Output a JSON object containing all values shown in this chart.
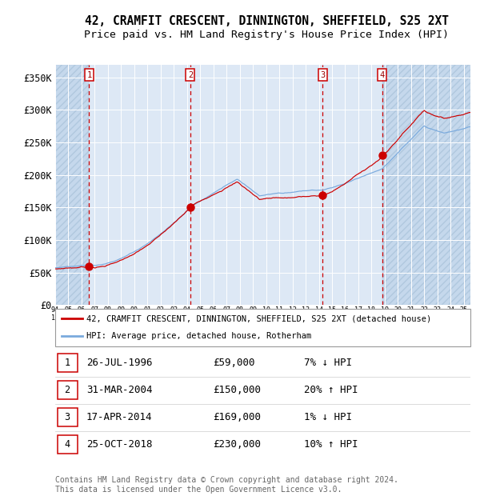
{
  "title1": "42, CRAMFIT CRESCENT, DINNINGTON, SHEFFIELD, S25 2XT",
  "title2": "Price paid vs. HM Land Registry's House Price Index (HPI)",
  "legend_line1": "42, CRAMFIT CRESCENT, DINNINGTON, SHEFFIELD, S25 2XT (detached house)",
  "legend_line2": "HPI: Average price, detached house, Rotherham",
  "footer": "Contains HM Land Registry data © Crown copyright and database right 2024.\nThis data is licensed under the Open Government Licence v3.0.",
  "sales": [
    {
      "num": 1,
      "date": "26-JUL-1996",
      "price": 59000,
      "pct": "7%",
      "dir": "↓",
      "year_x": 1996.57
    },
    {
      "num": 2,
      "date": "31-MAR-2004",
      "price": 150000,
      "pct": "20%",
      "dir": "↑",
      "year_x": 2004.25
    },
    {
      "num": 3,
      "date": "17-APR-2014",
      "price": 169000,
      "pct": "1%",
      "dir": "↓",
      "year_x": 2014.29
    },
    {
      "num": 4,
      "date": "25-OCT-2018",
      "price": 230000,
      "pct": "10%",
      "dir": "↑",
      "year_x": 2018.81
    }
  ],
  "ylabel_ticks": [
    0,
    50000,
    100000,
    150000,
    200000,
    250000,
    300000,
    350000
  ],
  "ylabel_labels": [
    "£0",
    "£50K",
    "£100K",
    "£150K",
    "£200K",
    "£250K",
    "£300K",
    "£350K"
  ],
  "xmin": 1994.0,
  "xmax": 2025.5,
  "ymin": 0,
  "ymax": 370000,
  "hpi_color": "#7aaadd",
  "price_color": "#cc0000",
  "sale_dot_color": "#cc0000",
  "bg_color": "#dde8f5",
  "grid_color": "#ffffff",
  "dashed_line_color": "#cc0000",
  "box_color": "#cc0000",
  "title_fontsize": 10.5,
  "subtitle_fontsize": 9.5,
  "axis_fontsize": 8.5,
  "table_fontsize": 9,
  "footer_fontsize": 7
}
